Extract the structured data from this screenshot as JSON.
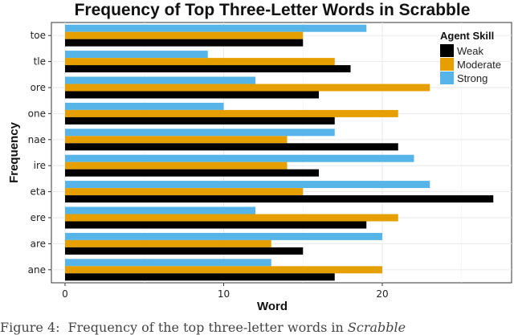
{
  "chart_data": {
    "type": "bar",
    "orientation": "horizontal",
    "title": "Frequency of Top Three-Letter Words in Scrabble",
    "xlabel": "Word",
    "ylabel": "Frequency",
    "categories": [
      "toe",
      "tle",
      "ore",
      "one",
      "nae",
      "ire",
      "eta",
      "ere",
      "are",
      "ane"
    ],
    "series": [
      {
        "name": "Weak",
        "color": "#000000",
        "values": [
          15,
          18,
          16,
          17,
          21,
          16,
          27,
          19,
          15,
          17
        ]
      },
      {
        "name": "Moderate",
        "color": "#E69F00",
        "values": [
          15,
          17,
          23,
          21,
          14,
          14,
          15,
          21,
          13,
          20
        ]
      },
      {
        "name": "Strong",
        "color": "#56B4E9",
        "values": [
          19,
          9,
          12,
          10,
          17,
          22,
          23,
          12,
          20,
          13
        ]
      }
    ],
    "xlim": [
      0,
      28
    ],
    "xticks": [
      0,
      10,
      20
    ],
    "grid": true,
    "legend": {
      "title": "Agent Skill",
      "placement": "top-right"
    }
  },
  "caption": {
    "label": "Figure 4:",
    "text": "Frequency of the top three-letter words in",
    "emphasis": "Scrabble"
  }
}
